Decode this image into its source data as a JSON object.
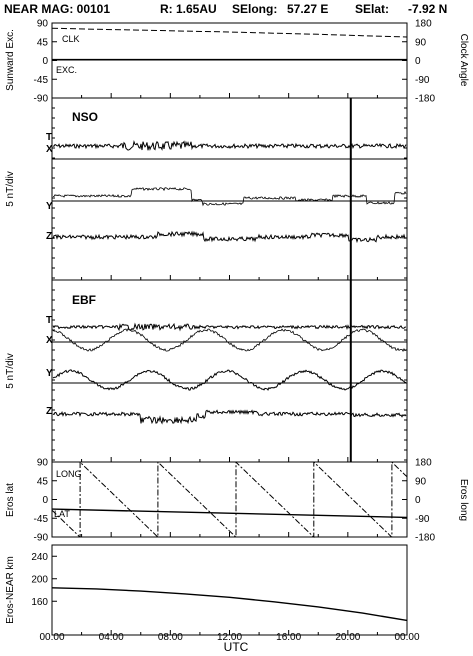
{
  "header": {
    "mission": "NEAR MAG: 00101",
    "range": "R: 1.65AU",
    "selong": "SElong:",
    "selong_val": "57.27 E",
    "selat": "SElat:",
    "selat_val": "-7.92 N"
  },
  "chart_data": [
    {
      "id": "panel1",
      "type": "line",
      "ylabel": "Sunward Exc.",
      "ylabel_right": "Clock Angle",
      "ylim": [
        -90,
        90
      ],
      "yticks": [
        "90",
        "45",
        "0",
        "-45",
        "-90"
      ],
      "ylim_right": [
        -180,
        180
      ],
      "yticks_right": [
        "180",
        "90",
        "0",
        "-90",
        "-180"
      ],
      "series": [
        {
          "name": "CLK",
          "x": [
            0,
            3,
            6,
            9,
            12,
            15,
            18,
            21,
            24
          ],
          "y": [
            155,
            150,
            146,
            141,
            137,
            131,
            126,
            119,
            113
          ],
          "axis": "right",
          "style": "dashed"
        },
        {
          "name": "EXC.",
          "x": [
            0,
            6,
            12,
            18,
            24
          ],
          "y": [
            2,
            2,
            2,
            2,
            2
          ],
          "axis": "left",
          "style": "solid"
        }
      ]
    },
    {
      "id": "panel2",
      "type": "line",
      "title": "NSO",
      "ylabel": "5 nT/div",
      "components": [
        "T",
        "X",
        "Y",
        "Z"
      ],
      "event_hour": 20.2
    },
    {
      "id": "panel3",
      "type": "line",
      "title": "EBF",
      "ylabel": "5 nT/div",
      "components": [
        "T",
        "X",
        "Y",
        "Z"
      ],
      "event_hour": 20.2
    },
    {
      "id": "panel4",
      "type": "line",
      "ylabel": "Eros lat",
      "ylabel_right": "Eros long",
      "ylim": [
        -90,
        90
      ],
      "yticks": [
        "90",
        "45",
        "0",
        "-45",
        "-90"
      ],
      "ylim_right": [
        -180,
        180
      ],
      "yticks_right": [
        "180",
        "90",
        "0",
        "-90",
        "-180"
      ],
      "series": [
        {
          "name": "LONG",
          "axis": "right",
          "style": "dashdot",
          "period_h": 5.27,
          "start_hour": 0,
          "start_value": -50
        },
        {
          "name": "LAT",
          "axis": "left",
          "style": "solid",
          "x": [
            0,
            24
          ],
          "y": [
            -23,
            -43
          ]
        }
      ]
    },
    {
      "id": "panel5",
      "type": "line",
      "ylabel": "Eros-NEAR km",
      "ylim": [
        100,
        260
      ],
      "yticks": [
        "240",
        "200",
        "160"
      ],
      "series": [
        {
          "name": "",
          "x": [
            0,
            3,
            6,
            9,
            12,
            15,
            18,
            21,
            24
          ],
          "y": [
            184,
            182,
            178,
            173,
            167,
            159,
            150,
            139,
            126
          ]
        }
      ]
    }
  ],
  "xaxis": {
    "label": "UTC",
    "ticks": [
      "00:00",
      "04:00",
      "08:00",
      "12:00",
      "16:00",
      "20:00",
      "00:00"
    ],
    "range": [
      0,
      24
    ]
  }
}
